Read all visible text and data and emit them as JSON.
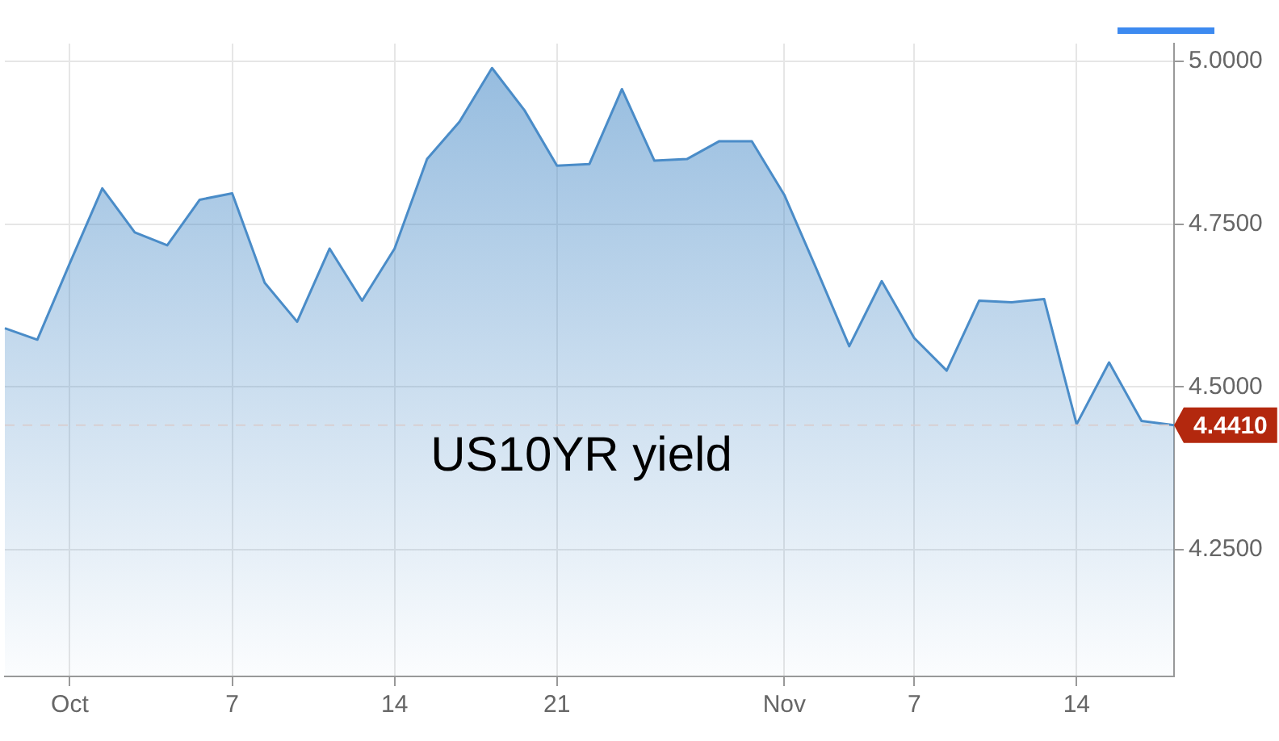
{
  "chart_data": {
    "type": "area",
    "categories": [
      null,
      null,
      "Oct",
      null,
      null,
      null,
      null,
      "7",
      null,
      null,
      null,
      null,
      "14",
      null,
      null,
      null,
      null,
      "21",
      null,
      null,
      null,
      null,
      null,
      null,
      "Nov",
      null,
      null,
      null,
      "7",
      null,
      null,
      null,
      null,
      "14",
      null,
      null,
      null
    ],
    "series": [
      {
        "color": "#4a8cc8",
        "values": [
          4.59,
          4.5725,
          4.69,
          4.805,
          4.7375,
          4.7175,
          4.7875,
          4.7975,
          4.66,
          4.6,
          4.7125,
          4.6325,
          4.7125,
          4.85,
          4.9075,
          4.99,
          4.925,
          4.84,
          4.8425,
          4.9575,
          4.8475,
          4.85,
          4.8775,
          4.8775,
          4.795,
          4.68,
          4.5625,
          4.6625,
          4.575,
          4.525,
          4.6325,
          4.63,
          4.635,
          4.4425,
          4.5375,
          4.4475,
          4.441
        ]
      }
    ],
    "ylim": [
      4.055,
      5.0275
    ],
    "yticks": [
      {
        "value": 4.25,
        "label": "4.2500"
      },
      {
        "value": 4.5,
        "label": "4.5000"
      },
      {
        "value": 4.75,
        "label": "4.7500"
      },
      {
        "value": 5,
        "label": "5.0000"
      }
    ],
    "ref_lines": [
      {
        "axis": "y",
        "value": 4.441,
        "label": "4.4410",
        "line_style": "dashed"
      }
    ],
    "annotations": [
      "US10YR yield"
    ],
    "grid": true,
    "legend": false,
    "marker": "none",
    "line_style": "solid"
  }
}
